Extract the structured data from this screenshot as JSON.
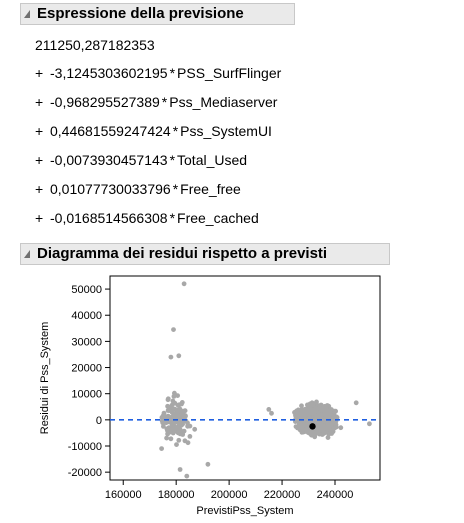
{
  "formula": {
    "title": "Espressione della previsione",
    "intercept": "211250,287182353",
    "terms": [
      {
        "op": "+",
        "coef": "-3,1245303602195",
        "var": "PSS_SurfFlinger"
      },
      {
        "op": "+",
        "coef": "-0,968295527389",
        "var": "Pss_Mediaserver"
      },
      {
        "op": "+",
        "coef": "0,44681559247424",
        "var": "Pss_SystemUI"
      },
      {
        "op": "+",
        "coef": "-0,0073930457143",
        "var": "Total_Used"
      },
      {
        "op": "+",
        "coef": "0,01077730033796",
        "var": "Free_free"
      },
      {
        "op": "+",
        "coef": "-0,0168514566308",
        "var": "Free_cached"
      }
    ]
  },
  "residual_plot": {
    "title": "Diagramma dei residui rispetto a previsti"
  },
  "chart_data": {
    "type": "scatter",
    "xlabel": "PrevistiPss_System",
    "ylabel": "Residui di Pss_System",
    "xlim": [
      155000,
      257000
    ],
    "ylim": [
      -23000,
      55000
    ],
    "xticks": [
      160000,
      180000,
      200000,
      220000,
      240000
    ],
    "yticks": [
      -20000,
      -10000,
      0,
      10000,
      20000,
      30000,
      40000,
      50000
    ],
    "reference_line": {
      "y": 0,
      "style": "dashed",
      "color": "#1f5fe0"
    },
    "point_color": "#a8a8a8",
    "highlight_point": {
      "x": 231500,
      "y": -2500,
      "color": "#000000"
    },
    "cluster_1": {
      "x_center": 180000,
      "x_spread": 6500,
      "y_spread": 9500,
      "count": 140
    },
    "cluster_2": {
      "x_center": 233000,
      "x_spread": 7500,
      "y_spread": 5500,
      "count": 2600
    },
    "outliers": [
      [
        183000,
        52000
      ],
      [
        179000,
        34500
      ],
      [
        178000,
        24000
      ],
      [
        181000,
        24500
      ],
      [
        192000,
        -17000
      ],
      [
        184000,
        -21500
      ],
      [
        181500,
        -19000
      ],
      [
        174500,
        -11000
      ],
      [
        253000,
        -1500
      ],
      [
        248000,
        6500
      ],
      [
        215000,
        4000
      ],
      [
        216000,
        2500
      ]
    ]
  }
}
